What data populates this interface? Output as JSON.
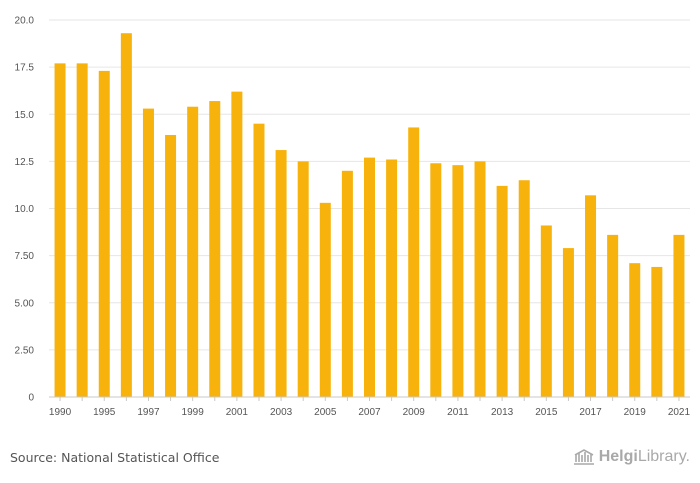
{
  "chart_data": {
    "type": "bar",
    "categories": [
      "1990",
      "1994",
      "1995",
      "1996",
      "1997",
      "1998",
      "1999",
      "2000",
      "2001",
      "2002",
      "2003",
      "2004",
      "2005",
      "2006",
      "2007",
      "2008",
      "2009",
      "2010",
      "2011",
      "2012",
      "2013",
      "2014",
      "2015",
      "2016",
      "2017",
      "2018",
      "2019",
      "2020",
      "2021"
    ],
    "x_tick_labels": [
      "1990",
      "1995",
      "1997",
      "1999",
      "2001",
      "2003",
      "2005",
      "2007",
      "2009",
      "2011",
      "2013",
      "2015",
      "2017",
      "2019",
      "2021"
    ],
    "values": [
      17.7,
      17.7,
      17.3,
      19.3,
      15.3,
      13.9,
      15.4,
      15.7,
      16.2,
      14.5,
      13.1,
      12.5,
      10.3,
      12.0,
      12.7,
      12.6,
      14.3,
      12.4,
      12.3,
      12.5,
      11.2,
      11.5,
      9.1,
      7.9,
      10.7,
      8.6,
      7.1,
      6.9,
      8.6
    ],
    "y_ticks": [
      "0",
      "2.50",
      "5.00",
      "7.50",
      "10.0",
      "12.5",
      "15.0",
      "17.5",
      "20.0"
    ],
    "ylim": [
      0,
      20
    ],
    "title": "",
    "xlabel": "",
    "ylabel": "",
    "grid": true,
    "bar_color": "#f8b20c",
    "grid_color": "#e6e6e6"
  },
  "footer": {
    "source": "Source: National Statistical Office",
    "logo_bold": "Helgi",
    "logo_regular": "Library."
  }
}
